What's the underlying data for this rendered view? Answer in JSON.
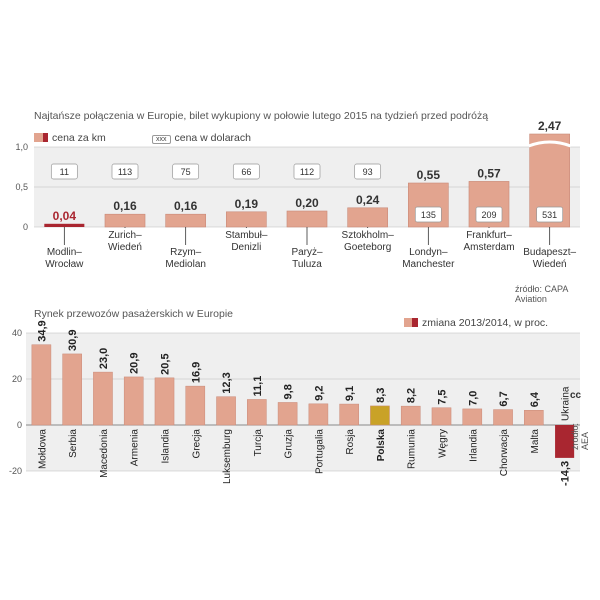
{
  "chart_data": [
    {
      "type": "bar",
      "title": "Najtańsze połączenia w Europie, bilet wykupiony w połowie lutego 2015 na tydzień przed podróżą",
      "legend": {
        "price_per_km": "cena za km",
        "price_usd_box": "xxx",
        "price_usd": "cena w dolarach"
      },
      "ylim": [
        0,
        1.0
      ],
      "yticks": [
        "0",
        "0,5",
        "1,0"
      ],
      "categories": [
        "Modlin–\nWrocław",
        "Zurich–\nWiedeń",
        "Rzym–\nMediolan",
        "Stambuł–\nDenizli",
        "Paryż–\nTuluza",
        "Sztokholm–\nGoeteborg",
        "Londyn–\nManchester",
        "Frankfurt–\nAmsterdam",
        "Budapeszt–\nWiedeń"
      ],
      "values": [
        0.04,
        0.16,
        0.16,
        0.19,
        0.2,
        0.24,
        0.55,
        0.57,
        2.47
      ],
      "value_labels": [
        "0,04",
        "0,16",
        "0,16",
        "0,19",
        "0,20",
        "0,24",
        "0,55",
        "0,57",
        "2,47"
      ],
      "usd": [
        11,
        113,
        75,
        66,
        112,
        93,
        135,
        209,
        531
      ],
      "source": "źródło: CAPA Aviation"
    },
    {
      "type": "bar",
      "title": "Rynek przewozów pasażerskich w Europie",
      "legend": "zmiana 2013/2014, w proc.",
      "ylim": [
        -20,
        40
      ],
      "yticks": [
        "-20",
        "0",
        "20",
        "40"
      ],
      "categories": [
        "Mołdowa",
        "Serbia",
        "Macedonia",
        "Armenia",
        "Islandia",
        "Grecja",
        "Luksemburg",
        "Turcja",
        "Gruzja",
        "Portugalia",
        "Rosja",
        "Polska",
        "Rumunia",
        "Węgry",
        "Irlandia",
        "Chorwacja",
        "Malta",
        "Ukraina"
      ],
      "values": [
        34.9,
        30.9,
        23.0,
        20.9,
        20.5,
        16.9,
        12.3,
        11.1,
        9.8,
        9.2,
        9.1,
        8.3,
        8.2,
        7.5,
        7.0,
        6.7,
        6.4,
        -14.3
      ],
      "value_labels": [
        "34,9",
        "30,9",
        "23,0",
        "20,9",
        "20,5",
        "16,9",
        "12,3",
        "11,1",
        "9,8",
        "9,2",
        "9,1",
        "8,3",
        "8,2",
        "7,5",
        "7,0",
        "6,7",
        "6,4",
        "-14,3"
      ],
      "highlight": "Polska",
      "source": "źródło: AEA"
    }
  ],
  "colors": {
    "bar": "#e2a48f",
    "bar_dark": "#a92630",
    "highlight": "#c9a227",
    "panel": "#efefef",
    "grid": "#bbbbbb",
    "box": "#ffffff"
  },
  "mark": "cc"
}
